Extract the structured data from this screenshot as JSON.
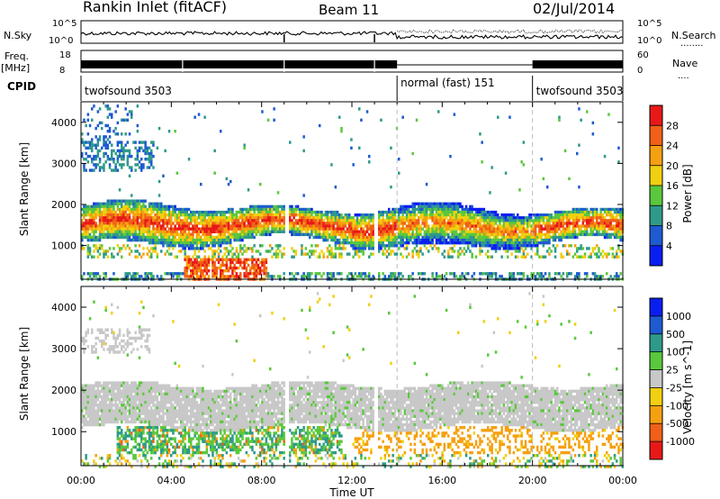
{
  "header": {
    "station": "Rankin Inlet (fitACF)",
    "beam": "Beam 11",
    "date": "02/Jul/2014"
  },
  "panels": {
    "nsky": {
      "label": "N.Sky",
      "tick_top": "10^5",
      "tick_bottom": "10^0"
    },
    "nsearch": {
      "label": "N.Search",
      "tick_top": "10^5",
      "tick_bottom": "10^0",
      "legend_line": "........"
    },
    "freq": {
      "label_top": "Freq.",
      "label_unit": "[MHz]",
      "tick_top": "18",
      "tick_bottom": "8"
    },
    "nave": {
      "label": "Nave",
      "tick_top": "60",
      "tick_bottom": "0",
      "legend_line": "...."
    },
    "cpid": {
      "label": "CPID",
      "modes": [
        {
          "text": "twofsound 3503",
          "start_hour": 0,
          "end_hour": 14
        },
        {
          "text": "normal (fast) 151",
          "start_hour": 14,
          "end_hour": 20
        },
        {
          "text": "twofsound 3503",
          "start_hour": 20,
          "end_hour": 24
        }
      ]
    }
  },
  "chart_data": [
    {
      "type": "heatmap",
      "title": "",
      "parameter": "Power",
      "unit": "[dB]",
      "xlabel": "Time UT",
      "ylabel": "Slant Range [km]",
      "xlim": [
        0,
        24
      ],
      "ylim": [
        180,
        4500
      ],
      "yticks": [
        1000,
        2000,
        3000,
        4000
      ],
      "colorbar_ticks": [
        "4",
        "8",
        "12",
        "16",
        "20",
        "24",
        "28"
      ],
      "colorbar_range": [
        0,
        32
      ],
      "colors": [
        "#0a1ef0",
        "#1e5ad2",
        "#2e9a8a",
        "#5ac83c",
        "#f0d010",
        "#f5a010",
        "#f06018",
        "#e81818"
      ],
      "bands": [
        {
          "range_km": [
            1150,
            2100
          ],
          "value_dB": 16
        },
        {
          "range_km": [
            1250,
            1850
          ],
          "value_dB": 24
        },
        {
          "range_km": [
            200,
            700
          ],
          "hours": [
            4.5,
            8
          ],
          "value_dB": 28
        },
        {
          "range_km": [
            2900,
            3500
          ],
          "hours": [
            0,
            3
          ],
          "value_dB": 8
        }
      ]
    },
    {
      "type": "heatmap",
      "title": "",
      "parameter": "Velocity",
      "unit": "[m s^-1]",
      "xlabel": "Time UT",
      "ylabel": "Slant Range [km]",
      "xlim": [
        0,
        24
      ],
      "ylim": [
        180,
        4500
      ],
      "yticks": [
        1000,
        2000,
        3000,
        4000
      ],
      "xticks": [
        "00:00",
        "04:00",
        "08:00",
        "12:00",
        "16:00",
        "20:00",
        "00:00"
      ],
      "colorbar_ticks": [
        "-1000",
        "-500",
        "-100",
        "-25",
        "25",
        "100",
        "500",
        "1000"
      ],
      "colors": [
        "#e81818",
        "#f06018",
        "#f5a010",
        "#f0d010",
        "#c8c8c8",
        "#5ac83c",
        "#2e9a8a",
        "#1e5ad2",
        "#0a1ef0"
      ],
      "bands": [
        {
          "range_km": [
            1100,
            2300
          ],
          "value_ms": 0
        },
        {
          "range_km": [
            500,
            1100
          ],
          "hours": [
            1.5,
            11
          ],
          "value_ms": 100
        },
        {
          "range_km": [
            500,
            1100
          ],
          "hours": [
            12,
            24
          ],
          "value_ms": -100
        }
      ]
    }
  ]
}
